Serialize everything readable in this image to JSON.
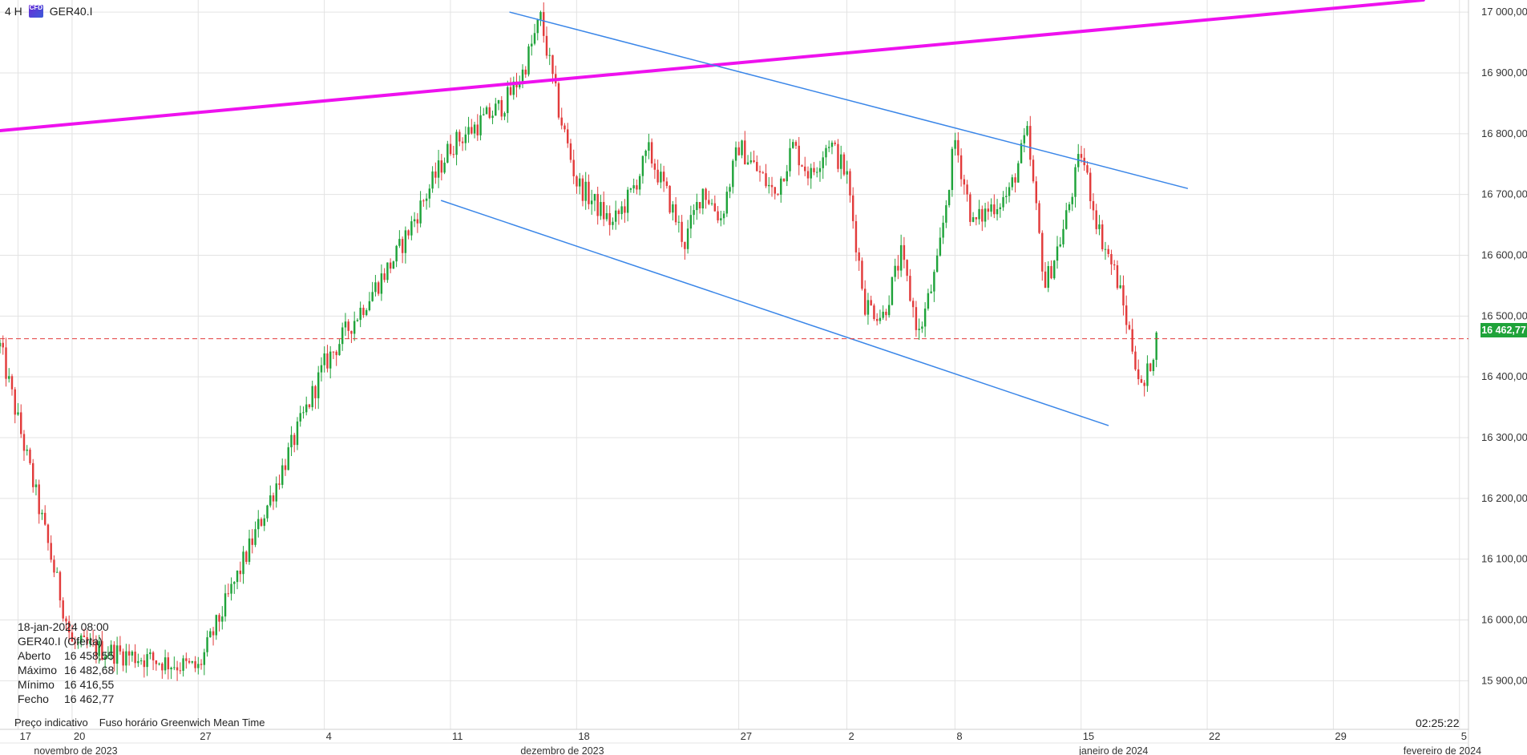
{
  "header": {
    "timeframe": "4 H",
    "badge": "CFD",
    "symbol": "GER40.I"
  },
  "info": {
    "datetime": "18-jan-2024 08:00",
    "instrument": "GER40.I (Oferta)",
    "rows": [
      {
        "label": "Aberto",
        "value": "16 458,55"
      },
      {
        "label": "Máximo",
        "value": "16 482,68"
      },
      {
        "label": "Mínimo",
        "value": "16 416,55"
      },
      {
        "label": "Fecho",
        "value": "16 462,77"
      }
    ]
  },
  "footer": {
    "indicative": "Preço indicativo",
    "tz_label": "Fuso horário",
    "tz_value": "Greenwich Mean Time"
  },
  "clock": "02:25:22",
  "colors": {
    "up": "#1fa33a",
    "down": "#e23b3b",
    "magenta": "#ee11ee",
    "channel": "#3a86e8",
    "grid": "#e3e3e3",
    "last": "#e23b3b"
  },
  "chart_data": {
    "type": "candlestick",
    "ylim": [
      15820,
      17020
    ],
    "y_ticks": [
      {
        "value": 15900,
        "label": "15 900,00"
      },
      {
        "value": 16000,
        "label": "16 000,00"
      },
      {
        "value": 16100,
        "label": "16 100,00"
      },
      {
        "value": 16200,
        "label": "16 200,00"
      },
      {
        "value": 16300,
        "label": "16 300,00"
      },
      {
        "value": 16400,
        "label": "16 400,00"
      },
      {
        "value": 16500,
        "label": "16 500,00"
      },
      {
        "value": 16600,
        "label": "16 600,00"
      },
      {
        "value": 16700,
        "label": "16 700,00"
      },
      {
        "value": 16800,
        "label": "16 800,00"
      },
      {
        "value": 16900,
        "label": "16 900,00"
      },
      {
        "value": 17000,
        "label": "17 000,00"
      }
    ],
    "x_ticks": [
      {
        "day": 17,
        "label": "17"
      },
      {
        "day": 20,
        "label": "20"
      },
      {
        "day": 27,
        "label": "27"
      },
      {
        "day": 34,
        "label": "4"
      },
      {
        "day": 41,
        "label": "11"
      },
      {
        "day": 48,
        "label": "18"
      },
      {
        "day": 57,
        "label": "27"
      },
      {
        "day": 63,
        "label": "2"
      },
      {
        "day": 69,
        "label": "8"
      },
      {
        "day": 76,
        "label": "15"
      },
      {
        "day": 83,
        "label": "22"
      },
      {
        "day": 90,
        "label": "29"
      },
      {
        "day": 97,
        "label": "5"
      }
    ],
    "months": [
      {
        "day": 21,
        "label": "novembro de 2023"
      },
      {
        "day": 48,
        "label": "dezembro de 2023"
      },
      {
        "day": 79,
        "label": "janeiro de 2024"
      },
      {
        "day": 97,
        "label": "fevereiro de 2024"
      }
    ],
    "last_price": {
      "value": 16462.77,
      "label": "16 462,77"
    },
    "trendlines": [
      {
        "name": "magenta-trendline",
        "color": "magenta",
        "width": 4,
        "points": [
          [
            16,
            16805
          ],
          [
            95,
            17020
          ]
        ]
      },
      {
        "name": "channel-upper",
        "color": "channel",
        "width": 1.5,
        "points": [
          [
            44.3,
            17000
          ],
          [
            81.9,
            16710
          ]
        ]
      },
      {
        "name": "channel-lower",
        "color": "channel",
        "width": 1.5,
        "points": [
          [
            40.5,
            16690
          ],
          [
            77.5,
            16320
          ]
        ]
      }
    ],
    "anchors": [
      [
        16,
        16450
      ],
      [
        20,
        15960
      ],
      [
        27,
        15920
      ],
      [
        31,
        16200
      ],
      [
        34,
        16420
      ],
      [
        38,
        16600
      ],
      [
        41,
        16780
      ],
      [
        44,
        16850
      ],
      [
        45,
        16900
      ],
      [
        46,
        16990
      ],
      [
        47,
        16840
      ],
      [
        48,
        16720
      ],
      [
        50,
        16650
      ],
      [
        51,
        16700
      ],
      [
        52,
        16770
      ],
      [
        53,
        16700
      ],
      [
        54,
        16620
      ],
      [
        55,
        16710
      ],
      [
        56,
        16660
      ],
      [
        57,
        16780
      ],
      [
        59,
        16700
      ],
      [
        60,
        16780
      ],
      [
        61,
        16730
      ],
      [
        62,
        16790
      ],
      [
        63,
        16730
      ],
      [
        64,
        16520
      ],
      [
        65,
        16500
      ],
      [
        66,
        16600
      ],
      [
        67,
        16470
      ],
      [
        68,
        16580
      ],
      [
        69,
        16790
      ],
      [
        70,
        16650
      ],
      [
        71,
        16680
      ],
      [
        72,
        16700
      ],
      [
        73,
        16800
      ],
      [
        74,
        16550
      ],
      [
        75,
        16640
      ],
      [
        76,
        16770
      ],
      [
        77,
        16640
      ],
      [
        78,
        16560
      ],
      [
        79,
        16430
      ],
      [
        79.4,
        16370
      ],
      [
        79.8,
        16420
      ],
      [
        80.2,
        16465
      ]
    ]
  }
}
